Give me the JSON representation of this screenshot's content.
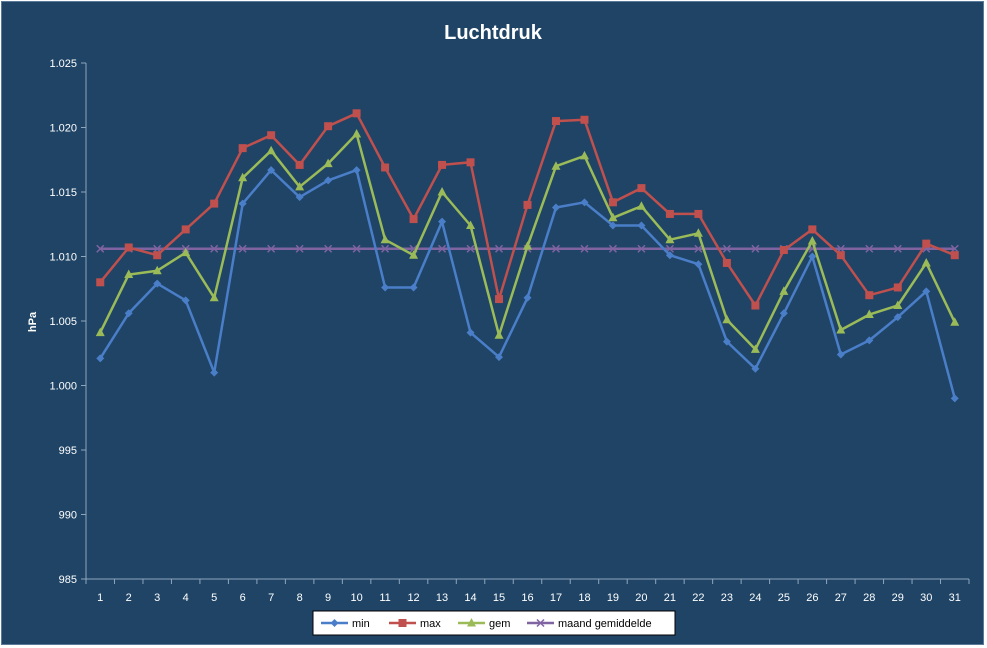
{
  "chart_data": {
    "type": "line",
    "title": "Luchtdruk",
    "xlabel": "",
    "ylabel": "hPa",
    "ylim": [
      985,
      1025
    ],
    "yticks": [
      985,
      990,
      995,
      1000,
      1005,
      1010,
      1015,
      1020,
      1025
    ],
    "ytick_labels": [
      "985",
      "990",
      "995",
      "1.000",
      "1.005",
      "1.010",
      "1.015",
      "1.020",
      "1.025"
    ],
    "categories": [
      "1",
      "2",
      "3",
      "4",
      "5",
      "6",
      "7",
      "8",
      "9",
      "10",
      "11",
      "12",
      "13",
      "14",
      "15",
      "16",
      "17",
      "18",
      "19",
      "20",
      "21",
      "22",
      "23",
      "24",
      "25",
      "26",
      "27",
      "28",
      "29",
      "30",
      "31"
    ],
    "grid": false,
    "legend_position": "bottom",
    "series": [
      {
        "name": "min",
        "color": "#4a7ec8",
        "marker": "diamond",
        "values": [
          1002.1,
          1005.6,
          1007.9,
          1006.6,
          1001.0,
          1014.1,
          1016.7,
          1014.6,
          1015.9,
          1016.7,
          1007.6,
          1007.6,
          1012.7,
          1004.1,
          1002.2,
          1006.8,
          1013.8,
          1014.2,
          1012.4,
          1012.4,
          1010.1,
          1009.4,
          1003.4,
          1001.3,
          1005.6,
          1010.0,
          1002.4,
          1003.5,
          1005.3,
          1007.3,
          999.0
        ]
      },
      {
        "name": "max",
        "color": "#c0504d",
        "marker": "square",
        "values": [
          1008.0,
          1010.7,
          1010.1,
          1012.1,
          1014.1,
          1018.4,
          1019.4,
          1017.1,
          1020.1,
          1021.1,
          1016.9,
          1012.9,
          1017.1,
          1017.3,
          1006.7,
          1014.0,
          1020.5,
          1020.6,
          1014.2,
          1015.3,
          1013.3,
          1013.3,
          1009.5,
          1006.2,
          1010.5,
          1012.1,
          1010.1,
          1007.0,
          1007.6,
          1011.0,
          1010.1
        ]
      },
      {
        "name": "gem",
        "color": "#9bbb59",
        "marker": "triangle",
        "values": [
          1004.1,
          1008.6,
          1008.9,
          1010.3,
          1006.8,
          1016.1,
          1018.2,
          1015.4,
          1017.2,
          1019.5,
          1011.3,
          1010.1,
          1015.0,
          1012.4,
          1003.9,
          1010.8,
          1017.0,
          1017.8,
          1013.0,
          1013.9,
          1011.3,
          1011.8,
          1005.1,
          1002.8,
          1007.3,
          1011.2,
          1004.3,
          1005.5,
          1006.2,
          1009.5,
          1004.9
        ]
      },
      {
        "name": "maand gemiddelde",
        "color": "#8064a2",
        "marker": "x",
        "values": [
          1010.6,
          1010.6,
          1010.6,
          1010.6,
          1010.6,
          1010.6,
          1010.6,
          1010.6,
          1010.6,
          1010.6,
          1010.6,
          1010.6,
          1010.6,
          1010.6,
          1010.6,
          1010.6,
          1010.6,
          1010.6,
          1010.6,
          1010.6,
          1010.6,
          1010.6,
          1010.6,
          1010.6,
          1010.6,
          1010.6,
          1010.6,
          1010.6,
          1010.6,
          1010.6,
          1010.6
        ]
      }
    ]
  }
}
